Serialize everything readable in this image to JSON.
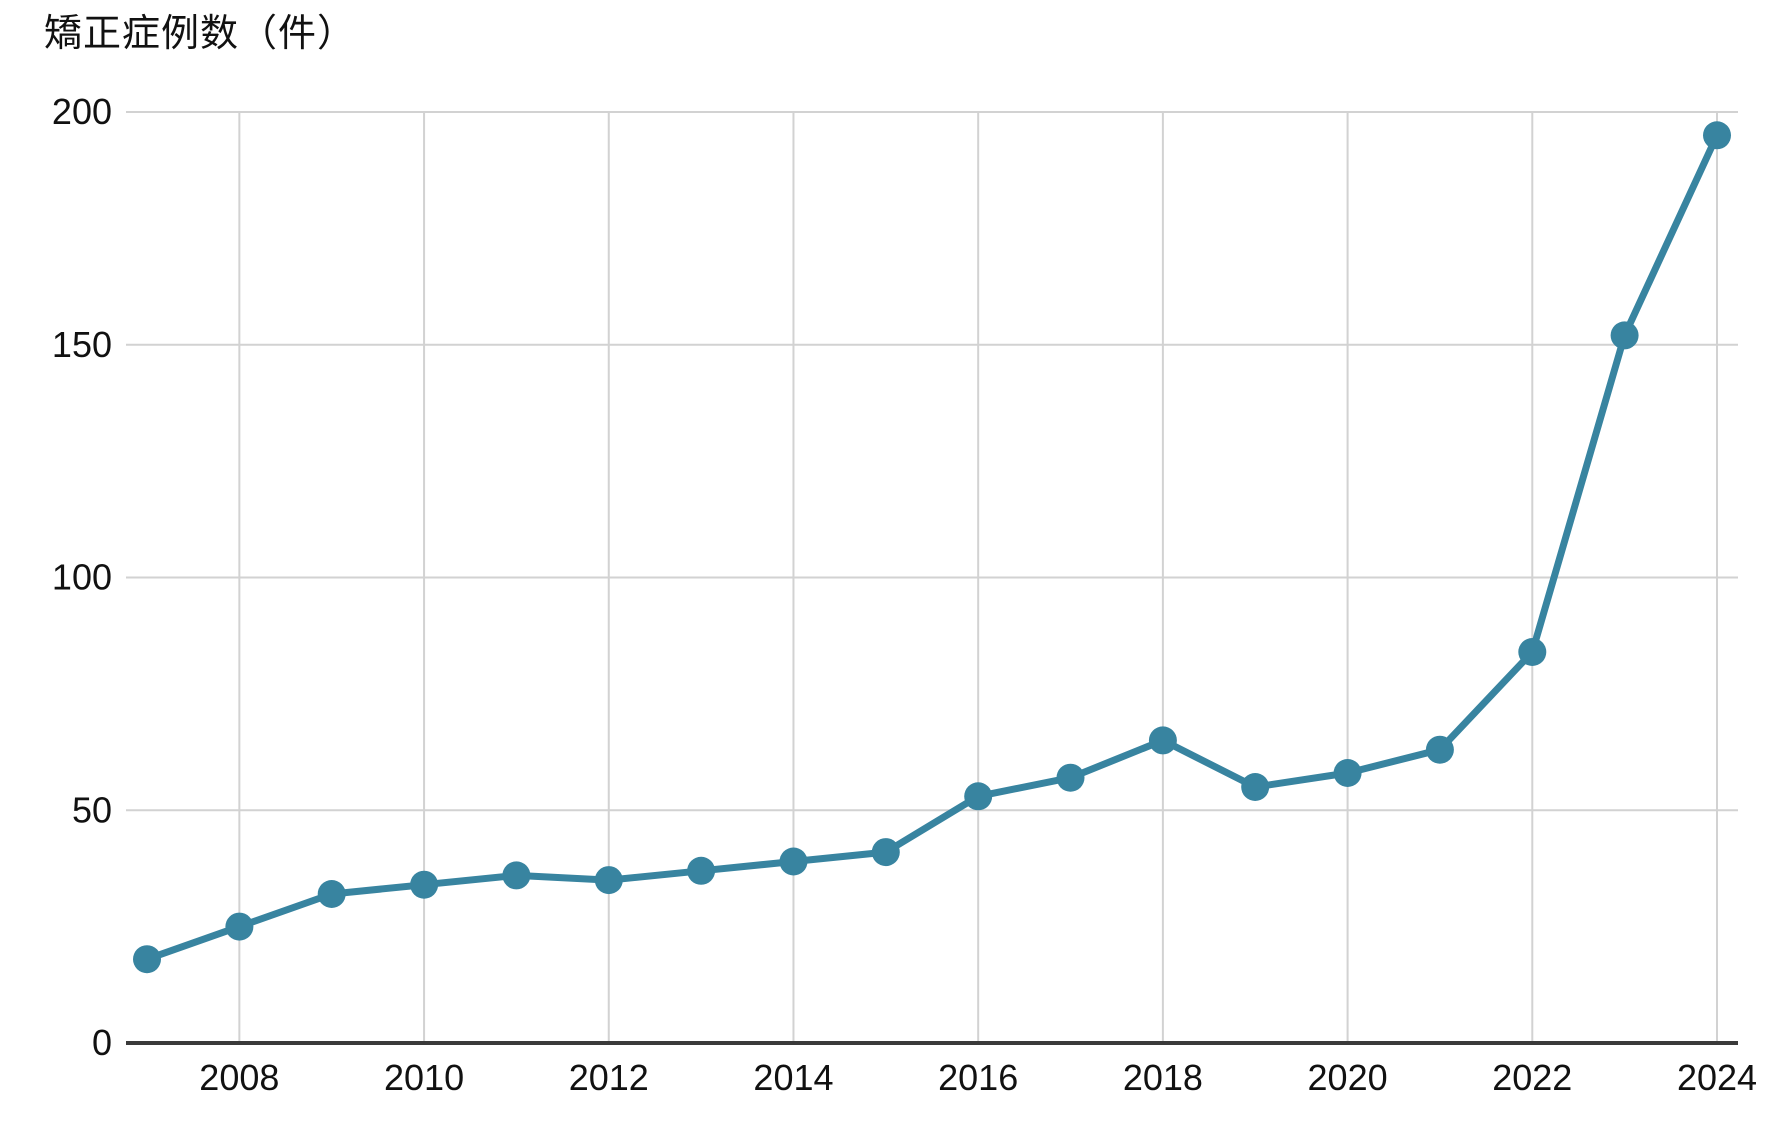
{
  "chart_data": {
    "type": "line",
    "title": "矯正症例数（件）",
    "series_name": "矯正症例数",
    "x": [
      2007,
      2008,
      2009,
      2010,
      2011,
      2012,
      2013,
      2014,
      2015,
      2016,
      2017,
      2018,
      2019,
      2020,
      2021,
      2022,
      2023,
      2024
    ],
    "values": [
      18,
      25,
      32,
      34,
      36,
      35,
      37,
      39,
      41,
      53,
      57,
      65,
      55,
      58,
      63,
      84,
      152,
      195
    ],
    "xlabel": "",
    "ylabel": "矯正症例数（件）",
    "ylim": [
      0,
      200
    ],
    "y_ticks": [
      0,
      50,
      100,
      150,
      200
    ],
    "y_tick_labels": [
      "0",
      "50",
      "100",
      "150",
      "200"
    ],
    "x_ticks": [
      2008,
      2010,
      2012,
      2014,
      2016,
      2018,
      2020,
      2022,
      2024
    ],
    "x_tick_labels": [
      "2008",
      "2010",
      "2012",
      "2014",
      "2016",
      "2018",
      "2020",
      "2022",
      "2024"
    ],
    "grid": "on",
    "legend": "none",
    "marker": "circle",
    "colors": {
      "line": "#3884a0",
      "marker": "#3884a0",
      "grid": "#d2d2d2",
      "axis": "#3a3a3a",
      "text": "#111111",
      "background": "#ffffff"
    }
  }
}
